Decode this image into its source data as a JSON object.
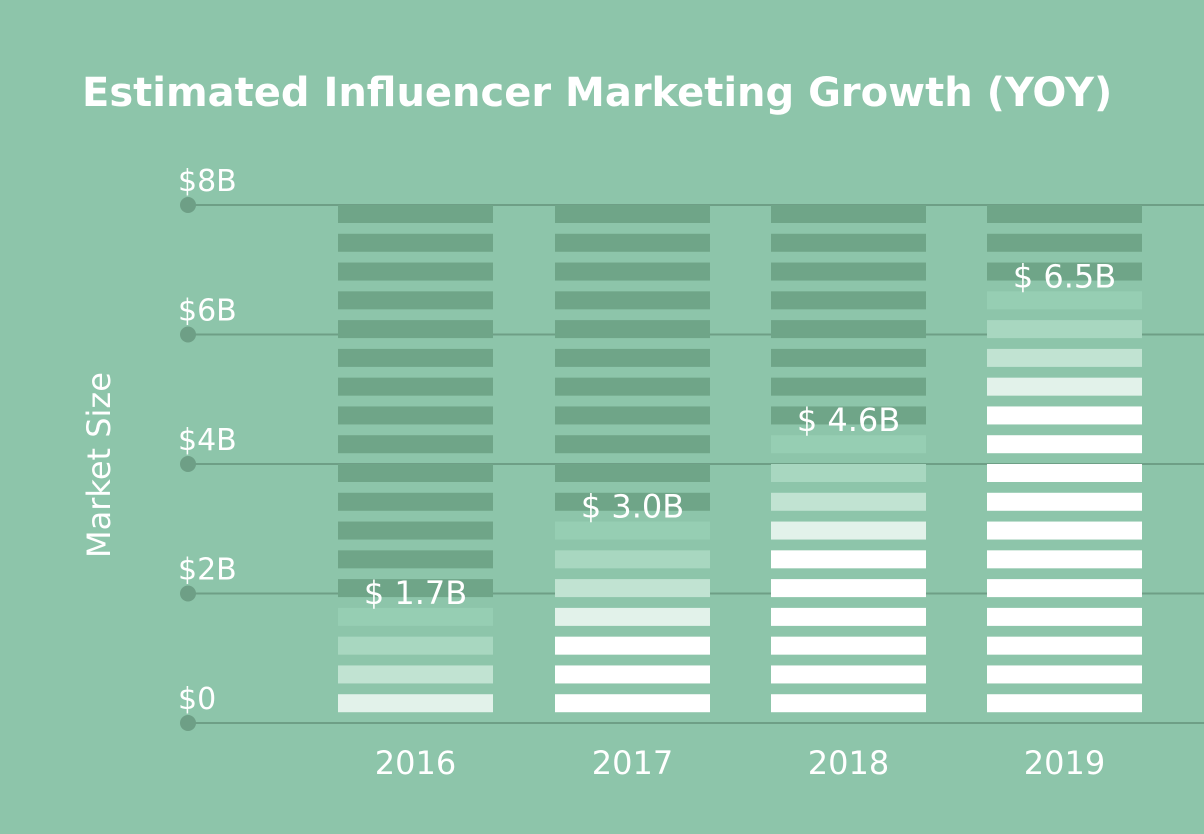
{
  "chart_data": {
    "type": "bar",
    "title": "Estimated Influencer Marketing Growth (YOY)",
    "xlabel": "",
    "ylabel": "Market Size",
    "categories": [
      "2016",
      "2017",
      "2018",
      "2019"
    ],
    "values": [
      1.7,
      3.0,
      4.6,
      6.5
    ],
    "value_labels": [
      "$ 1.7B",
      "$ 3.0B",
      "$ 4.6B",
      "$ 6.5B"
    ],
    "ylim": [
      0,
      8
    ],
    "yticks": [
      0,
      2,
      4,
      6,
      8
    ],
    "ytick_labels": [
      "$0",
      "$2B",
      "$4B",
      "$6B",
      "$8B"
    ],
    "grid": true,
    "colors": {
      "background": "#8dc5aa",
      "empty_stripe": "#6fa588",
      "fill_stripe": "#ffffff",
      "fade_1": "#e2f2ea",
      "fade_2": "#c1e3d2",
      "fade_3": "#a8d7c0",
      "fade_4": "#96ceb3",
      "gridline": "#6e9f86",
      "dot": "#6e9f86"
    }
  }
}
